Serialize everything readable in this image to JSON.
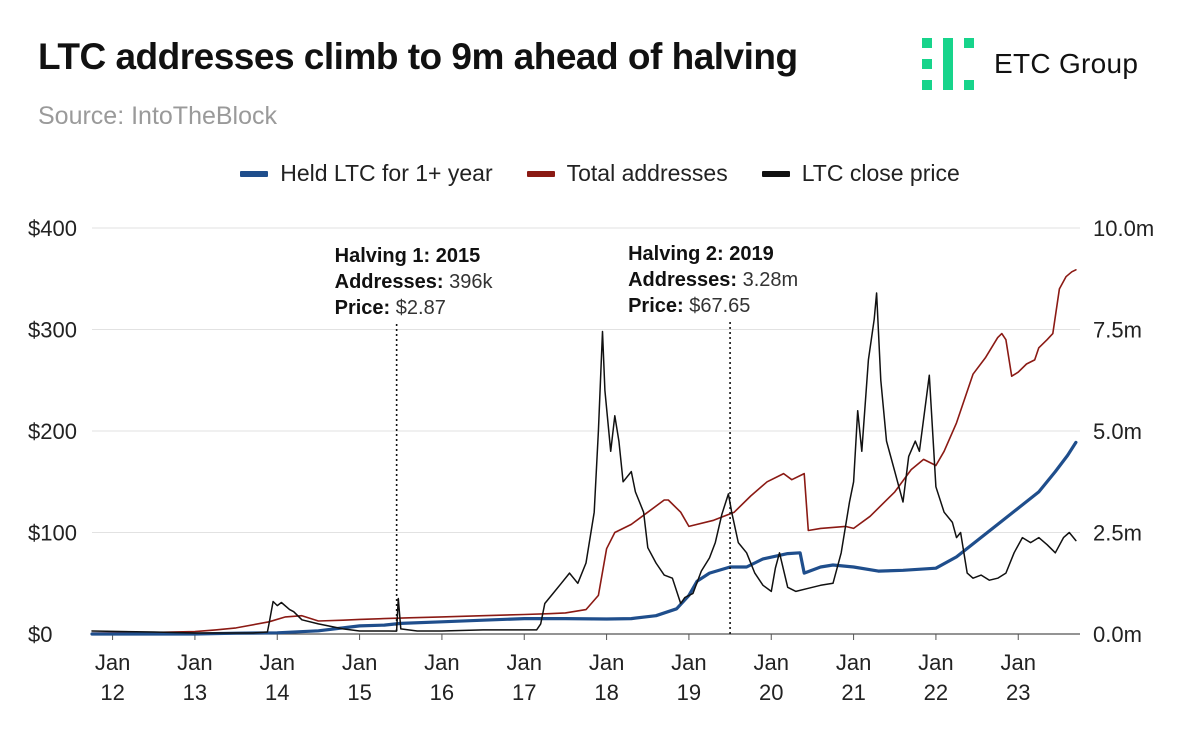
{
  "header": {
    "title": "LTC addresses climb to 9m ahead of halving",
    "source": "Source: IntoTheBlock",
    "logo_text": "ETC Group",
    "logo_color": "#17d48b"
  },
  "legend": [
    {
      "label": "Held LTC for 1+ year",
      "color": "#1f4e8c"
    },
    {
      "label": "Total addresses",
      "color": "#8b1a14"
    },
    {
      "label": "LTC close price",
      "color": "#111111"
    }
  ],
  "chart_data": {
    "type": "line",
    "x_range": [
      2011.75,
      2023.75
    ],
    "x_ticks": [
      {
        "t": 2012,
        "label": [
          "Jan",
          "12"
        ]
      },
      {
        "t": 2013,
        "label": [
          "Jan",
          "13"
        ]
      },
      {
        "t": 2014,
        "label": [
          "Jan",
          "14"
        ]
      },
      {
        "t": 2015,
        "label": [
          "Jan",
          "15"
        ]
      },
      {
        "t": 2016,
        "label": [
          "Jan",
          "16"
        ]
      },
      {
        "t": 2017,
        "label": [
          "Jan",
          "17"
        ]
      },
      {
        "t": 2018,
        "label": [
          "Jan",
          "18"
        ]
      },
      {
        "t": 2019,
        "label": [
          "Jan",
          "19"
        ]
      },
      {
        "t": 2020,
        "label": [
          "Jan",
          "20"
        ]
      },
      {
        "t": 2021,
        "label": [
          "Jan",
          "21"
        ]
      },
      {
        "t": 2022,
        "label": [
          "Jan",
          "22"
        ]
      },
      {
        "t": 2023,
        "label": [
          "Jan",
          "23"
        ]
      }
    ],
    "y_left": {
      "range": [
        0,
        400
      ],
      "ticks": [
        0,
        100,
        200,
        300,
        400
      ],
      "labels": [
        "$0",
        "$100",
        "$200",
        "$300",
        "$400"
      ]
    },
    "y_right": {
      "range": [
        0,
        10
      ],
      "ticks": [
        0,
        2.5,
        5,
        7.5,
        10
      ],
      "labels": [
        "0.0m",
        "2.5m",
        "5.0m",
        "7.5m",
        "10.0m"
      ]
    },
    "grid": true,
    "series": [
      {
        "name": "Total addresses",
        "axis": "right",
        "color": "#8b1a14",
        "width": 1.6,
        "unit": "millions",
        "points": [
          [
            2011.75,
            0.02
          ],
          [
            2012.5,
            0.04
          ],
          [
            2013.0,
            0.06
          ],
          [
            2013.25,
            0.1
          ],
          [
            2013.5,
            0.15
          ],
          [
            2013.9,
            0.3
          ],
          [
            2014.1,
            0.42
          ],
          [
            2014.3,
            0.45
          ],
          [
            2014.5,
            0.32
          ],
          [
            2014.8,
            0.34
          ],
          [
            2015.0,
            0.36
          ],
          [
            2015.3,
            0.38
          ],
          [
            2015.6,
            0.4
          ],
          [
            2016.0,
            0.42
          ],
          [
            2016.5,
            0.45
          ],
          [
            2017.0,
            0.48
          ],
          [
            2017.3,
            0.5
          ],
          [
            2017.5,
            0.52
          ],
          [
            2017.75,
            0.6
          ],
          [
            2017.9,
            0.95
          ],
          [
            2018.0,
            2.1
          ],
          [
            2018.1,
            2.5
          ],
          [
            2018.3,
            2.7
          ],
          [
            2018.5,
            3.0
          ],
          [
            2018.7,
            3.3
          ],
          [
            2018.75,
            3.3
          ],
          [
            2018.9,
            3.0
          ],
          [
            2019.0,
            2.65
          ],
          [
            2019.3,
            2.8
          ],
          [
            2019.55,
            3.0
          ],
          [
            2019.75,
            3.4
          ],
          [
            2019.95,
            3.75
          ],
          [
            2020.15,
            3.95
          ],
          [
            2020.25,
            3.8
          ],
          [
            2020.4,
            3.95
          ],
          [
            2020.45,
            2.55
          ],
          [
            2020.6,
            2.6
          ],
          [
            2020.9,
            2.65
          ],
          [
            2021.0,
            2.6
          ],
          [
            2021.2,
            2.9
          ],
          [
            2021.5,
            3.5
          ],
          [
            2021.7,
            4.05
          ],
          [
            2021.85,
            4.3
          ],
          [
            2022.0,
            4.15
          ],
          [
            2022.1,
            4.5
          ],
          [
            2022.25,
            5.2
          ],
          [
            2022.45,
            6.4
          ],
          [
            2022.6,
            6.8
          ],
          [
            2022.75,
            7.3
          ],
          [
            2022.8,
            7.4
          ],
          [
            2022.85,
            7.25
          ],
          [
            2022.92,
            6.35
          ],
          [
            2023.0,
            6.45
          ],
          [
            2023.1,
            6.65
          ],
          [
            2023.2,
            6.75
          ],
          [
            2023.25,
            7.05
          ],
          [
            2023.35,
            7.25
          ],
          [
            2023.42,
            7.4
          ],
          [
            2023.5,
            8.5
          ],
          [
            2023.58,
            8.8
          ],
          [
            2023.65,
            8.92
          ],
          [
            2023.7,
            8.97
          ]
        ]
      },
      {
        "name": "Held LTC for 1+ year",
        "axis": "right",
        "color": "#1f4e8c",
        "width": 3.2,
        "unit": "millions",
        "points": [
          [
            2011.75,
            0.0
          ],
          [
            2013.0,
            0.0
          ],
          [
            2013.5,
            0.02
          ],
          [
            2014.0,
            0.03
          ],
          [
            2014.5,
            0.08
          ],
          [
            2015.0,
            0.2
          ],
          [
            2015.3,
            0.22
          ],
          [
            2015.5,
            0.26
          ],
          [
            2016.0,
            0.3
          ],
          [
            2016.5,
            0.34
          ],
          [
            2017.0,
            0.38
          ],
          [
            2017.5,
            0.38
          ],
          [
            2018.0,
            0.37
          ],
          [
            2018.3,
            0.38
          ],
          [
            2018.6,
            0.45
          ],
          [
            2018.85,
            0.62
          ],
          [
            2019.0,
            0.95
          ],
          [
            2019.1,
            1.3
          ],
          [
            2019.25,
            1.5
          ],
          [
            2019.5,
            1.65
          ],
          [
            2019.7,
            1.65
          ],
          [
            2019.9,
            1.85
          ],
          [
            2020.2,
            1.98
          ],
          [
            2020.35,
            2.0
          ],
          [
            2020.4,
            1.5
          ],
          [
            2020.6,
            1.65
          ],
          [
            2020.75,
            1.7
          ],
          [
            2021.0,
            1.65
          ],
          [
            2021.3,
            1.55
          ],
          [
            2021.6,
            1.57
          ],
          [
            2022.0,
            1.62
          ],
          [
            2022.25,
            1.9
          ],
          [
            2022.5,
            2.3
          ],
          [
            2022.75,
            2.7
          ],
          [
            2023.0,
            3.1
          ],
          [
            2023.25,
            3.5
          ],
          [
            2023.45,
            4.0
          ],
          [
            2023.6,
            4.4
          ],
          [
            2023.7,
            4.72
          ]
        ]
      },
      {
        "name": "LTC close price",
        "axis": "left",
        "color": "#111111",
        "width": 1.5,
        "unit": "USD",
        "points": [
          [
            2011.75,
            3
          ],
          [
            2012.5,
            2
          ],
          [
            2013.0,
            1
          ],
          [
            2013.3,
            1
          ],
          [
            2013.7,
            1
          ],
          [
            2013.88,
            2
          ],
          [
            2013.9,
            10
          ],
          [
            2013.95,
            32
          ],
          [
            2014.0,
            28
          ],
          [
            2014.05,
            31
          ],
          [
            2014.15,
            24
          ],
          [
            2014.2,
            22
          ],
          [
            2014.3,
            14
          ],
          [
            2014.5,
            10
          ],
          [
            2014.8,
            5
          ],
          [
            2015.0,
            3
          ],
          [
            2015.35,
            3
          ],
          [
            2015.45,
            2.9
          ],
          [
            2015.47,
            35
          ],
          [
            2015.5,
            5
          ],
          [
            2015.7,
            3
          ],
          [
            2016.0,
            3
          ],
          [
            2016.5,
            4
          ],
          [
            2017.0,
            4
          ],
          [
            2017.15,
            4
          ],
          [
            2017.2,
            10
          ],
          [
            2017.25,
            30
          ],
          [
            2017.35,
            40
          ],
          [
            2017.45,
            50
          ],
          [
            2017.55,
            60
          ],
          [
            2017.65,
            50
          ],
          [
            2017.75,
            70
          ],
          [
            2017.85,
            120
          ],
          [
            2017.9,
            200
          ],
          [
            2017.95,
            298
          ],
          [
            2017.98,
            240
          ],
          [
            2018.05,
            180
          ],
          [
            2018.1,
            215
          ],
          [
            2018.15,
            190
          ],
          [
            2018.2,
            150
          ],
          [
            2018.3,
            160
          ],
          [
            2018.35,
            140
          ],
          [
            2018.4,
            130
          ],
          [
            2018.45,
            120
          ],
          [
            2018.5,
            85
          ],
          [
            2018.6,
            70
          ],
          [
            2018.7,
            58
          ],
          [
            2018.8,
            55
          ],
          [
            2018.9,
            30
          ],
          [
            2018.95,
            36
          ],
          [
            2019.05,
            40
          ],
          [
            2019.15,
            62
          ],
          [
            2019.25,
            75
          ],
          [
            2019.32,
            90
          ],
          [
            2019.4,
            118
          ],
          [
            2019.48,
            138
          ],
          [
            2019.52,
            120
          ],
          [
            2019.6,
            90
          ],
          [
            2019.7,
            80
          ],
          [
            2019.8,
            60
          ],
          [
            2019.9,
            48
          ],
          [
            2020.0,
            42
          ],
          [
            2020.05,
            65
          ],
          [
            2020.1,
            80
          ],
          [
            2020.2,
            46
          ],
          [
            2020.3,
            42
          ],
          [
            2020.45,
            45
          ],
          [
            2020.6,
            48
          ],
          [
            2020.75,
            50
          ],
          [
            2020.85,
            80
          ],
          [
            2020.95,
            130
          ],
          [
            2021.0,
            150
          ],
          [
            2021.05,
            220
          ],
          [
            2021.1,
            180
          ],
          [
            2021.18,
            270
          ],
          [
            2021.25,
            310
          ],
          [
            2021.28,
            336
          ],
          [
            2021.33,
            250
          ],
          [
            2021.4,
            190
          ],
          [
            2021.5,
            160
          ],
          [
            2021.55,
            145
          ],
          [
            2021.6,
            130
          ],
          [
            2021.67,
            175
          ],
          [
            2021.75,
            190
          ],
          [
            2021.8,
            180
          ],
          [
            2021.88,
            230
          ],
          [
            2021.92,
            255
          ],
          [
            2021.96,
            200
          ],
          [
            2022.0,
            145
          ],
          [
            2022.1,
            120
          ],
          [
            2022.2,
            110
          ],
          [
            2022.25,
            95
          ],
          [
            2022.3,
            100
          ],
          [
            2022.38,
            60
          ],
          [
            2022.45,
            55
          ],
          [
            2022.55,
            58
          ],
          [
            2022.65,
            53
          ],
          [
            2022.75,
            55
          ],
          [
            2022.85,
            60
          ],
          [
            2022.95,
            80
          ],
          [
            2023.05,
            95
          ],
          [
            2023.15,
            90
          ],
          [
            2023.25,
            95
          ],
          [
            2023.35,
            88
          ],
          [
            2023.45,
            80
          ],
          [
            2023.55,
            95
          ],
          [
            2023.62,
            100
          ],
          [
            2023.7,
            92
          ]
        ]
      }
    ],
    "annotations": [
      {
        "t": 2015.45,
        "title": "Halving 1: 2015",
        "lines": [
          {
            "k": "Addresses:",
            "v": "396k"
          },
          {
            "k": "Price:",
            "v": "$2.87"
          }
        ]
      },
      {
        "t": 2019.5,
        "title": "Halving 2: 2019",
        "lines": [
          {
            "k": "Addresses:",
            "v": "3.28m"
          },
          {
            "k": "Price:",
            "v": "$67.65"
          }
        ]
      }
    ]
  }
}
